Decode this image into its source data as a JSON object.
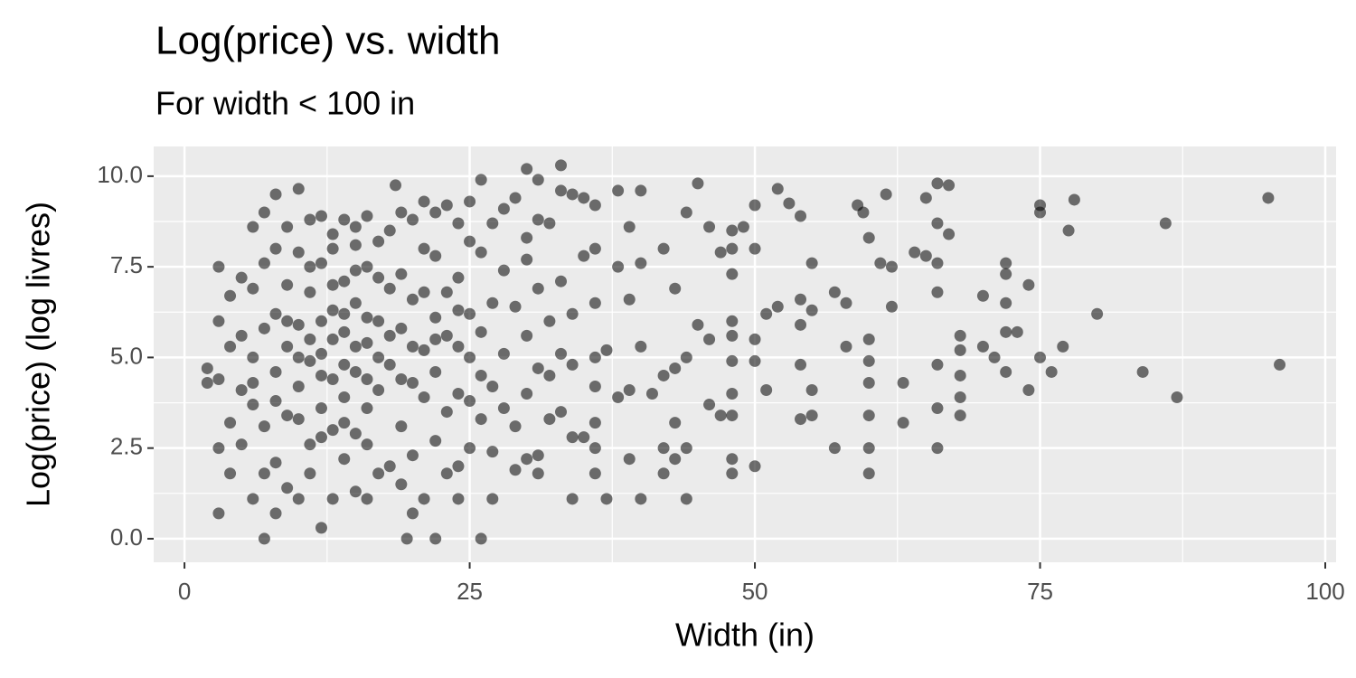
{
  "chart_data": {
    "type": "scatter",
    "title": "Log(price) vs. width",
    "subtitle": "For width < 100 in",
    "x_label": "Width (in)",
    "y_label": "Log(price) (log livres)",
    "color": "#000000",
    "opacity": 0.55,
    "grid": true,
    "xlim": [
      -2.7,
      100.95
    ],
    "ylim": [
      -0.65,
      10.82
    ],
    "xticks": [
      0,
      25,
      50,
      75,
      100
    ],
    "yticks": [
      {
        "value": 0,
        "label": "0.0"
      },
      2.5,
      {
        "value": 5,
        "label": "5.0"
      },
      7.5,
      {
        "value": 10,
        "label": "10.0"
      }
    ],
    "x": [
      95,
      96,
      87,
      86,
      84,
      80,
      78,
      77.5,
      77,
      76,
      75,
      75,
      75,
      74,
      74,
      73,
      72,
      72,
      72,
      72,
      72,
      71,
      70,
      70,
      68,
      68,
      68,
      68,
      68,
      67,
      67,
      66,
      66,
      66,
      66,
      66,
      66,
      66,
      65,
      65,
      64,
      63,
      63,
      62,
      62,
      61.5,
      61,
      60,
      60,
      60,
      60,
      60,
      60,
      60,
      59.5,
      59,
      58,
      58,
      57,
      57,
      55,
      55,
      55,
      55,
      54,
      54,
      54,
      54,
      54,
      53,
      52,
      52,
      51,
      51,
      50,
      50,
      50,
      50,
      50,
      49,
      48,
      48,
      48,
      48,
      48,
      48,
      48,
      48,
      48,
      48,
      47,
      47,
      46,
      46,
      46,
      45,
      45,
      44,
      44,
      44,
      44,
      43,
      43,
      43,
      43,
      42,
      42,
      42,
      42,
      41,
      40,
      40,
      40,
      40,
      39,
      39,
      39,
      39,
      38,
      38,
      38,
      37,
      37,
      36,
      36,
      36,
      36,
      36,
      36,
      36,
      36,
      35,
      35,
      35,
      34,
      34,
      34,
      34,
      34,
      33,
      33,
      33,
      33,
      33,
      32,
      32,
      32,
      32,
      31,
      31,
      31,
      31,
      31,
      31,
      30,
      30,
      30,
      30,
      30,
      30,
      29,
      29,
      29,
      29,
      28,
      28,
      28,
      28,
      27,
      27,
      27,
      27,
      27,
      26,
      26,
      26,
      26,
      26,
      26,
      25,
      25,
      25,
      25,
      25,
      25,
      24,
      24,
      24,
      24,
      24,
      24,
      23,
      23,
      23,
      23,
      23,
      22,
      22,
      22,
      22,
      22,
      22,
      21,
      21,
      21,
      21,
      21,
      20,
      20,
      20,
      20,
      20,
      19.5,
      19,
      19,
      19,
      19,
      19,
      18.5,
      18,
      18,
      18,
      18,
      17,
      17,
      17,
      17,
      16,
      16,
      16,
      16,
      16,
      15,
      15,
      15,
      15,
      15,
      14,
      14,
      14,
      14,
      14,
      13,
      13,
      13,
      13,
      13,
      12,
      12,
      12,
      12,
      12,
      11,
      11,
      11,
      11,
      11,
      10,
      10,
      10,
      10,
      10,
      9,
      9,
      9,
      9,
      9,
      8,
      8,
      8,
      8,
      8,
      8,
      7,
      7,
      7,
      7,
      7,
      7,
      6,
      6,
      6,
      6,
      6,
      5,
      5,
      5,
      5,
      4,
      4,
      4,
      4,
      3,
      3,
      3,
      3,
      3,
      2,
      2,
      12,
      13,
      14,
      15,
      16,
      17,
      11,
      12,
      13,
      14,
      15,
      16,
      10,
      9,
      18,
      19,
      20,
      21,
      22,
      24,
      14,
      16,
      12,
      10,
      8,
      6,
      13,
      15,
      17,
      11
    ],
    "values": [
      9.4,
      4.8,
      3.9,
      8.7,
      4.6,
      6.2,
      9.35,
      8.5,
      5.3,
      4.6,
      9.2,
      9.0,
      5.0,
      7.0,
      4.1,
      5.7,
      7.6,
      7.3,
      6.5,
      5.7,
      4.6,
      5.0,
      6.7,
      5.3,
      5.6,
      5.2,
      4.5,
      3.4,
      3.9,
      9.75,
      8.4,
      9.8,
      8.7,
      7.6,
      6.8,
      4.8,
      3.6,
      2.5,
      9.4,
      7.8,
      7.9,
      4.3,
      3.2,
      7.5,
      6.4,
      9.5,
      7.6,
      8.3,
      5.5,
      4.9,
      4.3,
      3.4,
      2.5,
      1.8,
      9.0,
      9.2,
      6.5,
      5.3,
      6.8,
      2.5,
      7.6,
      6.3,
      4.1,
      3.4,
      8.9,
      6.6,
      5.9,
      4.8,
      3.3,
      9.25,
      9.65,
      6.4,
      6.2,
      4.1,
      9.2,
      8.0,
      5.5,
      4.9,
      2.0,
      8.6,
      8.5,
      8.0,
      7.3,
      6.0,
      5.6,
      4.9,
      4.0,
      3.4,
      2.2,
      1.8,
      7.9,
      3.4,
      8.6,
      5.5,
      3.7,
      9.8,
      5.9,
      9.0,
      5.0,
      2.5,
      1.1,
      6.9,
      4.7,
      3.2,
      2.2,
      8.0,
      4.5,
      2.5,
      1.8,
      4.0,
      9.6,
      7.6,
      5.3,
      1.1,
      8.6,
      6.6,
      4.1,
      2.2,
      9.6,
      7.5,
      3.9,
      5.2,
      1.1,
      9.2,
      8.0,
      6.5,
      5.0,
      4.2,
      3.2,
      2.5,
      1.8,
      9.4,
      7.8,
      2.8,
      9.5,
      6.2,
      4.8,
      2.8,
      1.1,
      10.3,
      9.6,
      7.1,
      5.1,
      3.5,
      8.7,
      6.0,
      4.5,
      3.3,
      9.9,
      8.8,
      6.9,
      4.7,
      2.3,
      1.8,
      10.2,
      8.3,
      7.7,
      5.6,
      4.0,
      2.2,
      9.4,
      6.4,
      3.1,
      1.9,
      9.1,
      7.4,
      5.1,
      3.6,
      8.7,
      6.5,
      4.2,
      2.4,
      1.1,
      9.9,
      0.0,
      7.9,
      5.7,
      4.5,
      3.3,
      9.3,
      8.2,
      6.2,
      5.0,
      3.8,
      2.5,
      8.7,
      7.2,
      5.3,
      4.0,
      2.0,
      1.1,
      9.2,
      6.8,
      5.6,
      3.5,
      1.8,
      9.0,
      7.8,
      6.1,
      4.6,
      2.7,
      0.0,
      9.3,
      8.0,
      5.2,
      3.9,
      1.1,
      8.8,
      6.6,
      4.3,
      2.3,
      0.7,
      0.0,
      9.0,
      7.3,
      5.8,
      3.1,
      1.5,
      9.75,
      8.5,
      6.9,
      4.8,
      2.0,
      8.2,
      6.0,
      4.1,
      1.8,
      8.9,
      7.5,
      5.4,
      3.6,
      1.1,
      8.6,
      6.5,
      4.6,
      2.9,
      1.3,
      8.8,
      7.1,
      5.7,
      3.9,
      2.2,
      8.4,
      6.3,
      4.4,
      3.0,
      1.1,
      8.9,
      7.6,
      5.1,
      3.6,
      0.3,
      8.8,
      6.8,
      4.9,
      2.6,
      1.8,
      9.65,
      7.9,
      5.9,
      4.2,
      1.1,
      8.6,
      7.0,
      5.3,
      3.4,
      1.4,
      9.5,
      8.0,
      6.2,
      4.6,
      2.1,
      0.7,
      9.0,
      7.6,
      5.8,
      3.1,
      1.8,
      0.0,
      8.6,
      6.9,
      5.0,
      3.7,
      1.1,
      7.2,
      5.6,
      4.1,
      2.6,
      6.7,
      5.3,
      3.2,
      1.8,
      7.5,
      6.0,
      4.4,
      2.5,
      0.7,
      4.7,
      4.3,
      6.0,
      5.5,
      6.2,
      5.3,
      6.1,
      5.0,
      5.5,
      4.5,
      7.0,
      4.8,
      7.4,
      4.4,
      5.0,
      6.0,
      5.6,
      4.4,
      5.3,
      6.8,
      5.5,
      6.3,
      3.2,
      2.6,
      2.8,
      3.3,
      3.8,
      4.3,
      8.0,
      8.1,
      7.2,
      7.5
    ]
  }
}
